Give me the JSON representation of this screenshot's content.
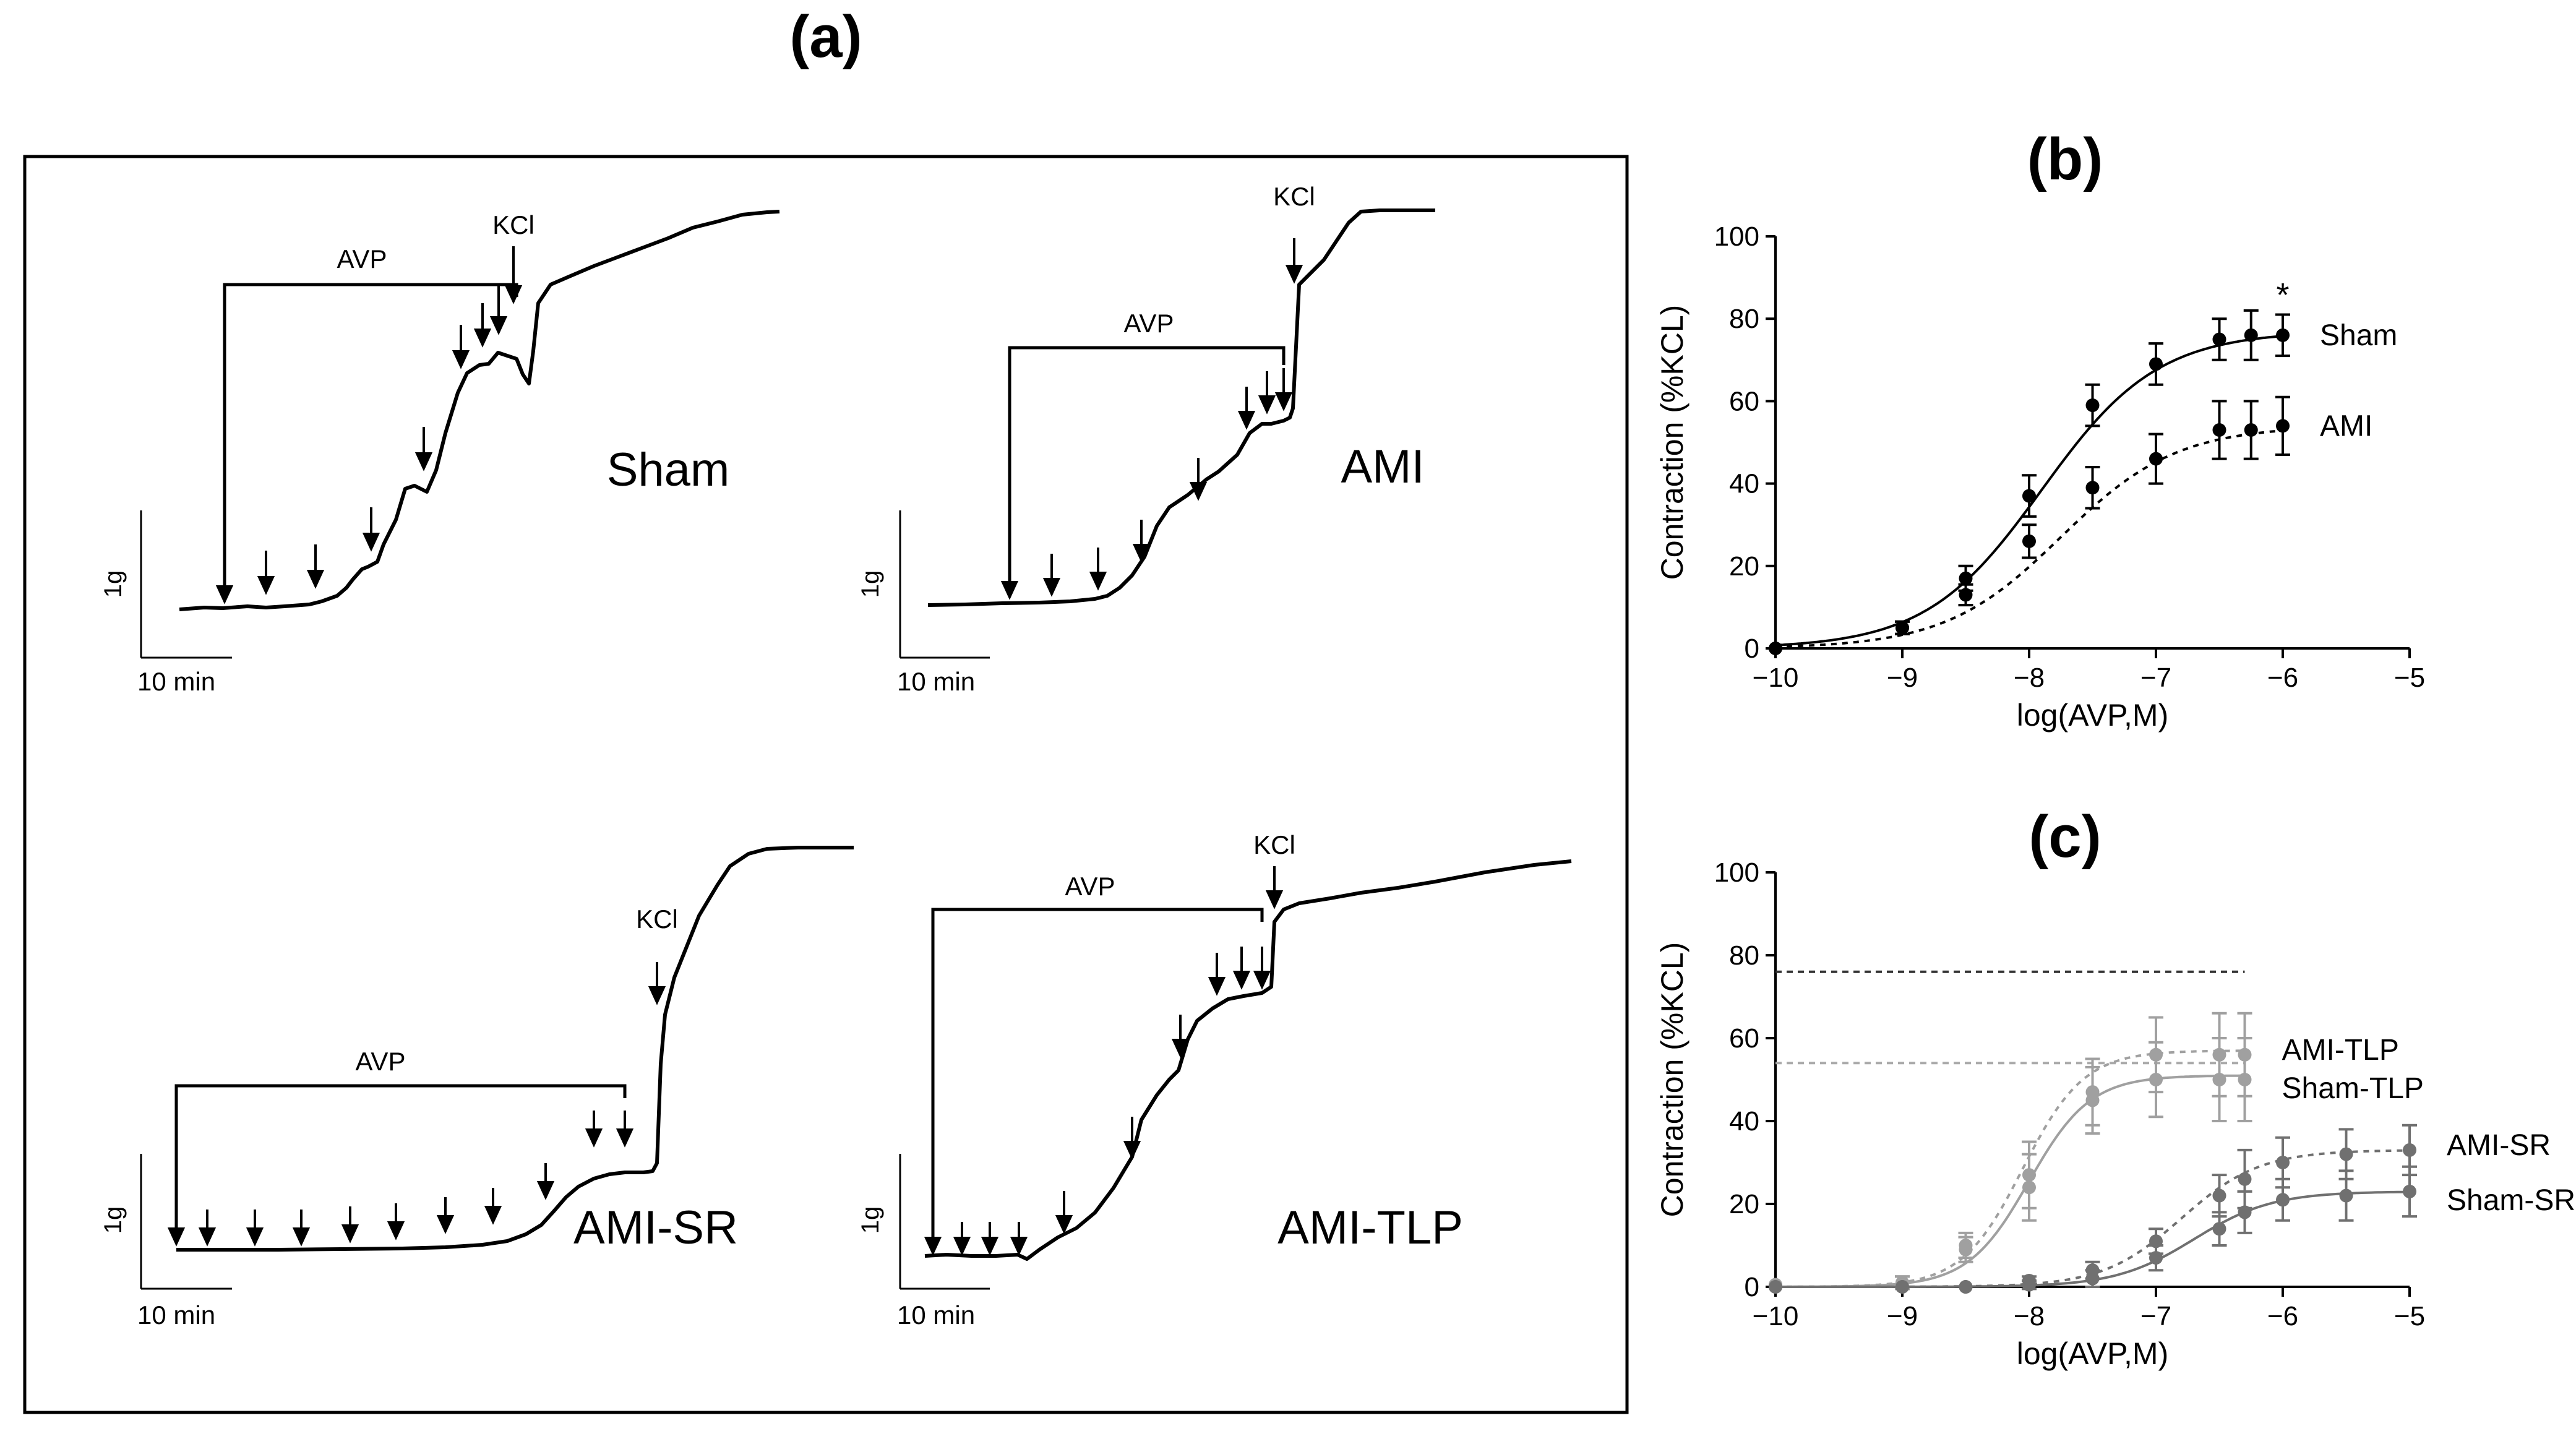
{
  "figure": {
    "label_a": "(a)",
    "label_b": "(b)",
    "label_c": "(c)"
  },
  "traces": [
    {
      "name": "Sham",
      "agonist": "AVP",
      "finisher": "KCl",
      "scale_y": "1g",
      "scale_x": "10 min"
    },
    {
      "name": "AMI",
      "agonist": "AVP",
      "finisher": "KCl",
      "scale_y": "1g",
      "scale_x": "10 min"
    },
    {
      "name": "AMI-SR",
      "agonist": "AVP",
      "finisher": "KCl",
      "scale_y": "1g",
      "scale_x": "10 min"
    },
    {
      "name": "AMI-TLP",
      "agonist": "AVP",
      "finisher": "KCl",
      "scale_y": "1g",
      "scale_x": "10 min"
    }
  ],
  "chart_data": [
    {
      "type": "line",
      "id": "b",
      "title": "(b)",
      "xlabel": "log(AVP,M)",
      "ylabel": "Contraction (%KCL)",
      "xlim": [
        -10,
        -5
      ],
      "ylim": [
        0,
        100
      ],
      "xticks": [
        -10,
        -9,
        -8,
        -7,
        -6,
        -5
      ],
      "xtick_labels": [
        "−10",
        "−9",
        "−8",
        "−7",
        "−6",
        "−5"
      ],
      "yticks": [
        0,
        20,
        40,
        60,
        80,
        100
      ],
      "ytick_labels": [
        "0",
        "20",
        "40",
        "60",
        "80",
        "100"
      ],
      "annotation": "*",
      "annotation_x": -6,
      "annotation_y": 86,
      "series": [
        {
          "name": "Sham",
          "style": "solid",
          "color": "#000000",
          "fit_bottom": 0,
          "fit_top": 77,
          "fit_ec50": -7.9,
          "fit_hill": 0.95,
          "x": [
            -10,
            -9,
            -8.5,
            -8,
            -7.5,
            -7,
            -6.5,
            -6.25,
            -6
          ],
          "y": [
            0,
            5,
            17,
            37,
            59,
            69,
            75,
            76,
            76
          ],
          "err": [
            0,
            1.5,
            3,
            5,
            5,
            5,
            5,
            6,
            5
          ]
        },
        {
          "name": "AMI",
          "style": "dashed",
          "color": "#000000",
          "fit_bottom": 0,
          "fit_top": 54,
          "fit_ec50": -7.75,
          "fit_hill": 0.95,
          "x": [
            -10,
            -9,
            -8.5,
            -8,
            -7.5,
            -7,
            -6.5,
            -6.25,
            -6
          ],
          "y": [
            0,
            5,
            13,
            26,
            39,
            46,
            53,
            53,
            54
          ],
          "err": [
            0,
            1.5,
            2.5,
            4,
            5,
            6,
            7,
            7,
            7
          ]
        }
      ]
    },
    {
      "type": "line",
      "id": "c",
      "title": "(c)",
      "xlabel": "log(AVP,M)",
      "ylabel": "Contraction (%KCL)",
      "xlim": [
        -10,
        -5
      ],
      "ylim": [
        0,
        100
      ],
      "xticks": [
        -10,
        -9,
        -8,
        -7,
        -6,
        -5
      ],
      "xtick_labels": [
        "−10",
        "−9",
        "−8",
        "−7",
        "−6",
        "−5"
      ],
      "yticks": [
        0,
        20,
        40,
        60,
        80,
        100
      ],
      "ytick_labels": [
        "0",
        "20",
        "40",
        "60",
        "80",
        "100"
      ],
      "reference_lines": [
        {
          "y": 76,
          "x_end": -6.3,
          "color": "#333333"
        },
        {
          "y": 54,
          "x_end": -6.3,
          "color": "#aaaaaa"
        }
      ],
      "series": [
        {
          "name": "AMI-TLP",
          "style": "dashed",
          "color": "#a0a0a0",
          "fit_bottom": 0,
          "fit_top": 57,
          "fit_ec50": -8.05,
          "fit_hill": 1.8,
          "x": [
            -10,
            -9,
            -8.5,
            -8,
            -7.5,
            -7,
            -6.5,
            -6.3
          ],
          "y": [
            0.5,
            1,
            10,
            27,
            47,
            56,
            56,
            56
          ],
          "err": [
            0,
            1.5,
            3,
            8,
            8,
            9,
            10,
            10
          ]
        },
        {
          "name": "Sham-TLP",
          "style": "solid",
          "color": "#a0a0a0",
          "fit_bottom": 0,
          "fit_top": 51,
          "fit_ec50": -8.0,
          "fit_hill": 1.8,
          "x": [
            -10,
            -9,
            -8.5,
            -8,
            -7.5,
            -7,
            -6.5,
            -6.3
          ],
          "y": [
            0.5,
            1,
            9,
            24,
            45,
            50,
            50,
            50
          ],
          "err": [
            0,
            1.5,
            3,
            8,
            8,
            9,
            10,
            10
          ]
        },
        {
          "name": "AMI-SR",
          "style": "dashed",
          "color": "#707070",
          "fit_bottom": 0,
          "fit_top": 33,
          "fit_ec50": -6.8,
          "fit_hill": 1.4,
          "x": [
            -10,
            -9,
            -8.5,
            -8,
            -7.5,
            -7,
            -6.5,
            -6.3,
            -6,
            -5.5,
            -5
          ],
          "y": [
            0,
            0,
            0,
            1.5,
            4,
            11,
            22,
            26,
            30,
            32,
            33
          ],
          "err": [
            0,
            0,
            0,
            1,
            2,
            3,
            5,
            7,
            6,
            6,
            6
          ]
        },
        {
          "name": "Sham-SR",
          "style": "solid",
          "color": "#707070",
          "fit_bottom": 0,
          "fit_top": 23,
          "fit_ec50": -6.7,
          "fit_hill": 1.4,
          "x": [
            -10,
            -9,
            -8.5,
            -8,
            -7.5,
            -7,
            -6.5,
            -6.3,
            -6,
            -5.5,
            -5
          ],
          "y": [
            0,
            0,
            0,
            0.5,
            2,
            7,
            14,
            18,
            21,
            22,
            23
          ],
          "err": [
            0,
            0,
            0,
            1,
            2,
            3,
            4,
            5,
            5,
            6,
            6
          ]
        }
      ]
    }
  ]
}
